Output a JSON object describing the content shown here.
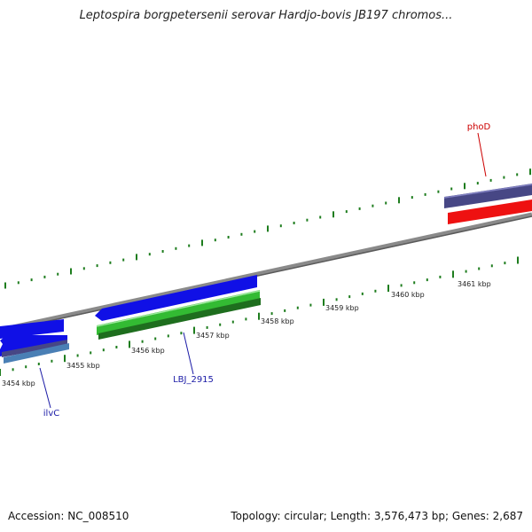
{
  "title": "Leptospira borgpetersenii serovar Hardjo-bovis JB197 chromos...",
  "footer": {
    "accession": "Accession: NC_008510",
    "summary": "Topology: circular; Length: 3,576,473 bp; Genes: 2,687"
  },
  "colors": {
    "backbone": "#8a8a8a",
    "tick": "#1e7d1e",
    "forward_blue": "#1010e6",
    "navy": "#474785",
    "red": "#ee1111",
    "green": "#33bb33",
    "dark_green": "#1e6e1e",
    "steel_blue": "#4a7fb5",
    "label_red": "#cc0000",
    "label_blue": "#1a1aa6"
  },
  "ticks": [
    "3454 kbp",
    "3455 kbp",
    "3456 kbp",
    "3457 kbp",
    "3458 kbp",
    "3459 kbp",
    "3460 kbp",
    "3461 kbp"
  ],
  "gene_labels": {
    "phoD": "phoD",
    "ilvC": "ilvC",
    "LBJ_2915": "LBJ_2915"
  }
}
